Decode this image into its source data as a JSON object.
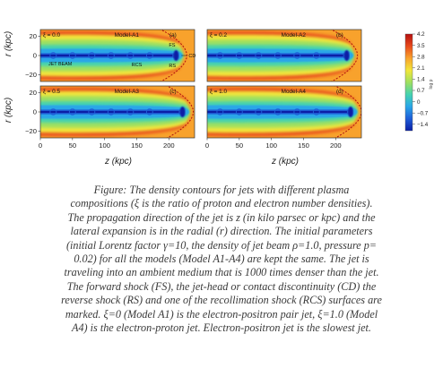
{
  "chart_data": {
    "type": "heatmap",
    "xlabel": "z (kpc)",
    "ylabel": "r (kpc)",
    "xlim": [
      0,
      240
    ],
    "ylim": [
      -27,
      27
    ],
    "x_ticks": [
      "0",
      "50",
      "100",
      "150",
      "200"
    ],
    "y_ticks": [
      "20",
      "0",
      "−20"
    ],
    "colorbar": {
      "label": "log ρ",
      "ticks": [
        "4.2",
        "3.5",
        "2.8",
        "2.1",
        "1.4",
        "0.7",
        "0",
        "−0.7",
        "−1.4"
      ],
      "range": [
        -1.8,
        4.2
      ],
      "colors": [
        "#0b1fa6",
        "#1f5ed8",
        "#2aa6e8",
        "#45d2b0",
        "#9fe060",
        "#f2e63a",
        "#f8a22c",
        "#e84a1c",
        "#b40f0f"
      ]
    },
    "panels": [
      {
        "xi_label": "ξ = 0.0",
        "model": "Model-A1",
        "tag": "(a)",
        "head_z": 214,
        "annotations": [
          "FS",
          "CD",
          "RS",
          "JET BEAM",
          "RCS"
        ]
      },
      {
        "xi_label": "ξ = 0.2",
        "model": "Model-A2",
        "tag": "(b)",
        "head_z": 220,
        "annotations": []
      },
      {
        "xi_label": "ξ = 0.5",
        "model": "Model-A3",
        "tag": "(c)",
        "head_z": 224,
        "annotations": []
      },
      {
        "xi_label": "ξ = 1.0",
        "model": "Model-A4",
        "tag": "(d)",
        "head_z": 226,
        "annotations": []
      }
    ]
  },
  "caption": [
    "Figure: The density contours for jets with different plasma",
    "compositions (ξ is the ratio of proton and electron number densities).",
    "The propagation direction of the jet is z (in kilo parsec or kpc) and the",
    "lateral expansion is in the radial (r) direction. The initial parameters",
    "(initial Lorentz factor γ=10, the density of jet beam ρ=1.0, pressure p=",
    "0.02) for all the models (Model A1-A4) are kept the same. The jet is",
    "traveling into an ambient medium that is 1000 times denser than the jet.",
    "The forward shock (FS), the jet-head or contact discontinuity (CD) the",
    "reverse shock (RS) and one of the recollimation shock (RCS) surfaces are",
    "marked. ξ=0 (Model A1) is the electron-positron pair jet, ξ=1.0 (Model",
    "A4) is the electron-proton jet. Electron-positron jet is the slowest jet."
  ]
}
